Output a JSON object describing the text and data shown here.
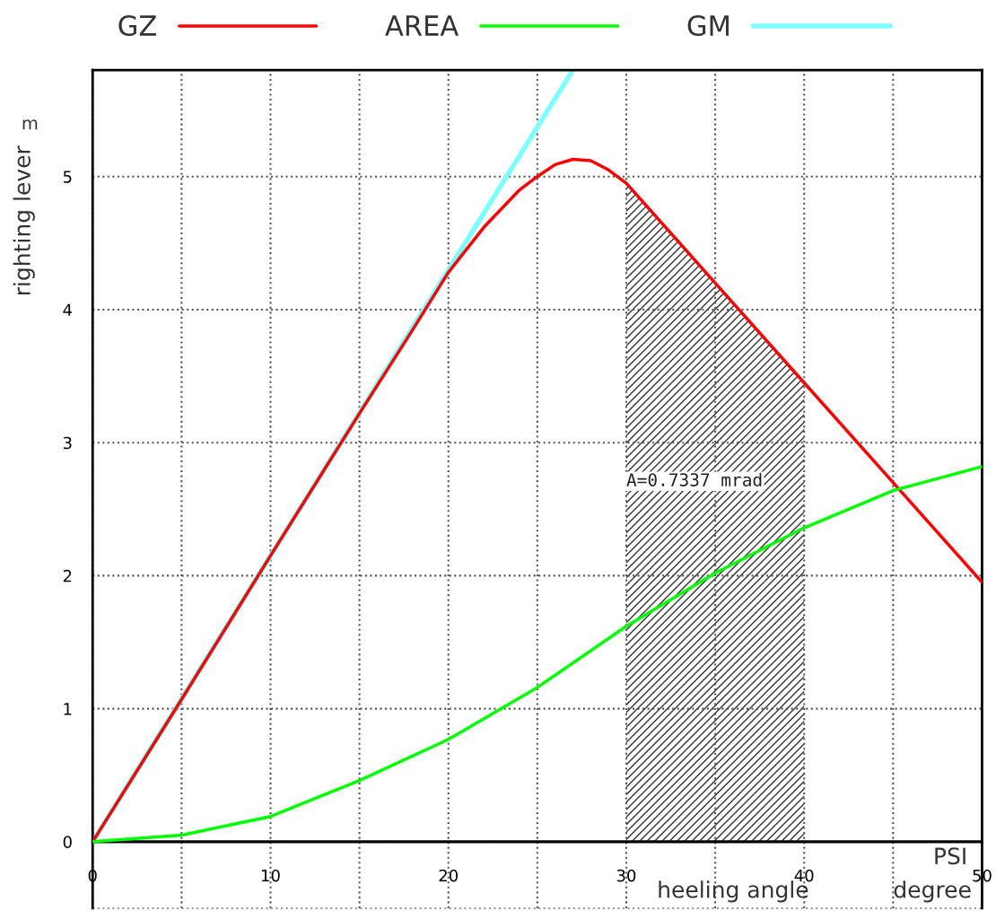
{
  "chart_data": {
    "type": "line",
    "xlabel": "heeling angle",
    "ylabel": "righting lever",
    "xlim": [
      0,
      50
    ],
    "ylim": [
      -0.5,
      5.8
    ],
    "xticks": [
      0,
      {
        "value": 5,
        "label": null
      },
      10,
      {
        "value": 15,
        "label": null
      },
      20,
      {
        "value": 25,
        "label": null
      },
      30,
      {
        "value": 35,
        "label": null
      },
      40,
      {
        "value": 45,
        "label": null
      },
      50
    ],
    "yticks": [
      0,
      1,
      2,
      3,
      4,
      5
    ],
    "grid": true,
    "legend": "top",
    "line_style": "solid",
    "marker": "none",
    "series": [
      {
        "name": "GZ",
        "color": "#ff0000",
        "x": [
          0,
          5,
          10,
          15,
          18,
          20,
          22,
          24,
          25,
          26,
          27,
          28,
          29,
          30,
          35,
          40,
          45,
          50
        ],
        "values": [
          0,
          1.07,
          2.15,
          3.22,
          3.85,
          4.28,
          4.62,
          4.9,
          5.0,
          5.09,
          5.13,
          5.12,
          5.05,
          4.95,
          4.2,
          3.45,
          2.7,
          1.95
        ]
      },
      {
        "name": "AREA",
        "color": "#00ff00",
        "x": [
          0,
          5,
          10,
          15,
          20,
          25,
          30,
          35,
          40,
          45,
          50
        ],
        "values": [
          0,
          0.05,
          0.19,
          0.46,
          0.77,
          1.16,
          1.62,
          2.02,
          2.36,
          2.64,
          2.82
        ]
      },
      {
        "name": "GM",
        "color": "#80ffff",
        "x": [
          0,
          26.9
        ],
        "values": [
          0,
          5.78
        ]
      }
    ],
    "bands": [
      {
        "axis": "x",
        "from": 30,
        "to": 40,
        "label": "A=0.7337 mrad",
        "color": "#333333"
      }
    ],
    "annotations": [
      "m",
      "degree",
      "PSI"
    ]
  }
}
